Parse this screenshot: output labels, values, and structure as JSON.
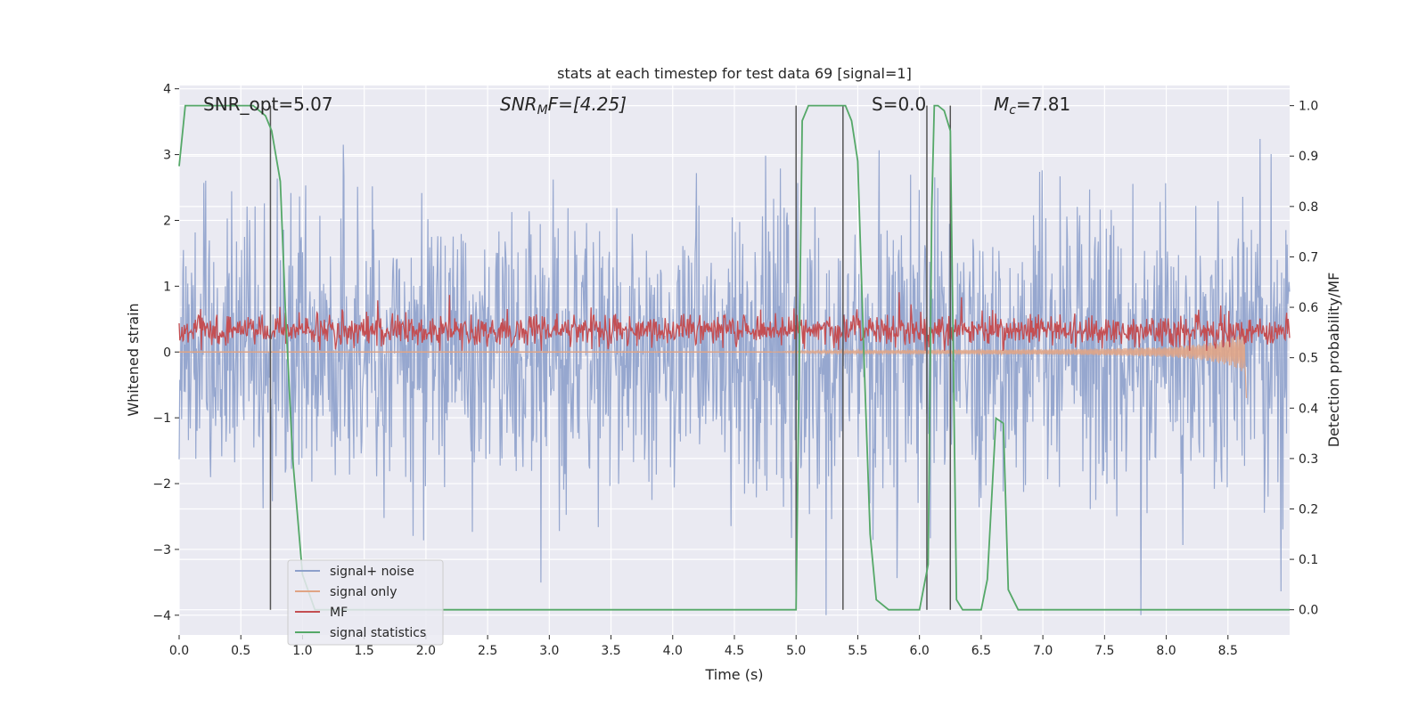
{
  "colors": {
    "background": "#eaeaf2",
    "grid": "#ffffff",
    "signal_noise": "#8da0cb",
    "signal_only": "#e0a485",
    "mf": "#c44e52",
    "signal_statistics": "#55a868",
    "vline": "#555555"
  },
  "chart_data": {
    "type": "line",
    "title": "stats at each timestep for test data 69 [signal=1]",
    "xlabel": "Time (s)",
    "ylabel": "Whitened strain",
    "y2label": "Detection probability/MF",
    "xlim": [
      0,
      9
    ],
    "ylim": [
      -4.3,
      4.05
    ],
    "y2lim": [
      -0.05,
      1.04
    ],
    "x_ticks": [
      "0.0",
      "0.5",
      "1.0",
      "1.5",
      "2.0",
      "2.5",
      "3.0",
      "3.5",
      "4.0",
      "4.5",
      "5.0",
      "5.5",
      "6.0",
      "6.5",
      "7.0",
      "7.5",
      "8.0",
      "8.5"
    ],
    "x_tick_values": [
      0,
      0.5,
      1,
      1.5,
      2,
      2.5,
      3,
      3.5,
      4,
      4.5,
      5,
      5.5,
      6,
      6.5,
      7,
      7.5,
      8,
      8.5
    ],
    "y_ticks": [
      "4",
      "3",
      "2",
      "1",
      "0",
      "−1",
      "−2",
      "−3",
      "−4"
    ],
    "y_tick_values": [
      4,
      3,
      2,
      1,
      0,
      -1,
      -2,
      -3,
      -4
    ],
    "y2_ticks": [
      "1.0",
      "0.9",
      "0.8",
      "0.7",
      "0.6",
      "0.5",
      "0.4",
      "0.3",
      "0.2",
      "0.1",
      "0.0"
    ],
    "y2_tick_values": [
      1.0,
      0.9,
      0.8,
      0.7,
      0.6,
      0.5,
      0.4,
      0.3,
      0.2,
      0.1,
      0.0
    ],
    "grid": true,
    "legend_placement": "lower-left",
    "annotations": {
      "snr_opt": "SNR_opt=5.07",
      "snr_mf_main": "SNR",
      "snr_mf_sub": "M",
      "snr_mf_rest": "F=[4.25]",
      "s": "S=0.0",
      "mc_main": "M",
      "mc_sub": "c",
      "mc_rest": "=7.81"
    },
    "series": [
      {
        "name": "signal+ noise",
        "description": "noisy whitened strain, spans approx -1.5 to 3 with spikes to ±4"
      },
      {
        "name": "signal only",
        "x": [
          0,
          1,
          2,
          3,
          4,
          4.8,
          5,
          5.5,
          6,
          6.5,
          7,
          7.5,
          8,
          8.3,
          8.5,
          8.6,
          8.64,
          8.65
        ],
        "y": [
          0,
          0,
          0,
          0,
          0,
          0,
          0.03,
          0.05,
          0.06,
          0.07,
          0.08,
          0.1,
          0.15,
          0.25,
          0.4,
          0.55,
          0.7,
          -0.7
        ]
      },
      {
        "name": "MF",
        "description": "matched filter output fluctuating around 0.3 between 0 and 1"
      },
      {
        "name": "signal statistics",
        "x": [
          0,
          0.05,
          0.1,
          0.2,
          0.3,
          0.4,
          0.5,
          0.6,
          0.7,
          0.75,
          0.82,
          0.86,
          0.92,
          1.0,
          1.1,
          1.2,
          1.5,
          2,
          3,
          4,
          4.5,
          4.75,
          4.95,
          5.0,
          5.05,
          5.1,
          5.2,
          5.3,
          5.4,
          5.45,
          5.5,
          5.55,
          5.6,
          5.65,
          5.75,
          5.8,
          6.0,
          6.07,
          6.1,
          6.12,
          6.15,
          6.2,
          6.25,
          6.3,
          6.35,
          6.4,
          6.5,
          6.55,
          6.62,
          6.68,
          6.72,
          6.8,
          6.9,
          7,
          8,
          9
        ],
        "y": [
          0.88,
          1.0,
          1.0,
          1.0,
          1.0,
          1.0,
          1.0,
          1.0,
          0.98,
          0.95,
          0.85,
          0.6,
          0.3,
          0.07,
          0.0,
          0.0,
          0.0,
          0.0,
          0.0,
          0.0,
          0.0,
          0.0,
          0.0,
          0.0,
          0.97,
          1.0,
          1.0,
          1.0,
          1.0,
          0.97,
          0.89,
          0.5,
          0.15,
          0.02,
          0.0,
          0.0,
          0.0,
          0.09,
          0.8,
          1.0,
          1.0,
          0.99,
          0.95,
          0.02,
          0.0,
          0.0,
          0.0,
          0.06,
          0.38,
          0.37,
          0.04,
          0.0,
          0.0,
          0.0,
          0.0,
          0.0
        ]
      }
    ],
    "vlines_x": [
      0.74,
      5.0,
      5.38,
      6.06,
      6.25
    ]
  },
  "legend": [
    "signal+ noise",
    "signal only",
    "MF",
    "signal statistics"
  ]
}
